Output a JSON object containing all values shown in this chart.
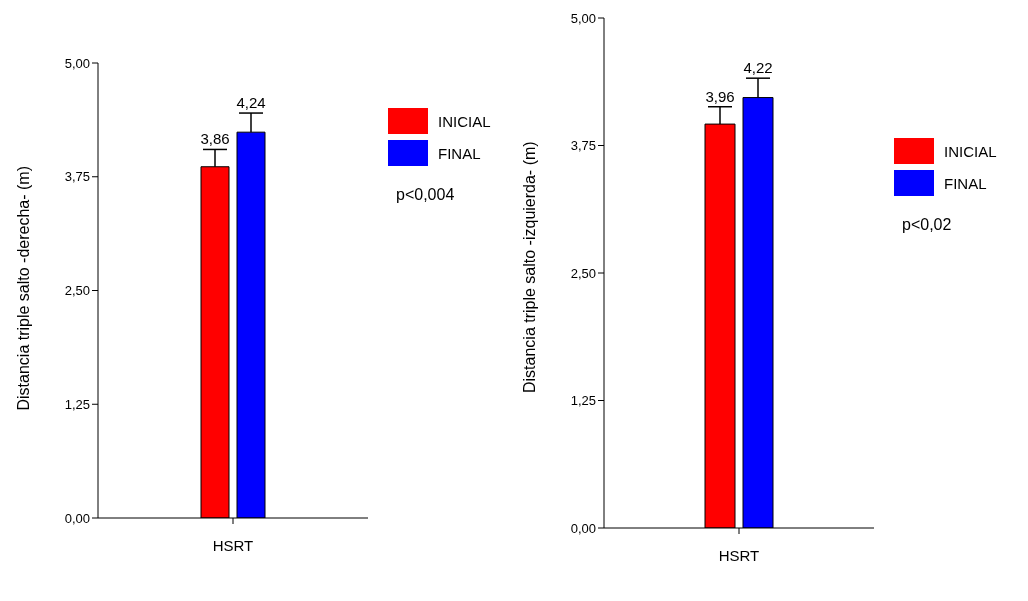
{
  "chart_data": [
    {
      "type": "bar",
      "categories": [
        "HSRT"
      ],
      "ylabel": "Distancia triple salto -derecha- (m)",
      "series": [
        {
          "name": "INICIAL",
          "color": "#ff0000",
          "values": [
            3.86
          ],
          "errors": [
            [
              3.86,
              4.05
            ]
          ],
          "value_labels": [
            "3,86"
          ]
        },
        {
          "name": "FINAL",
          "color": "#0000ff",
          "values": [
            4.24
          ],
          "errors": [
            [
              4.24,
              4.45
            ]
          ],
          "value_labels": [
            "4,24"
          ]
        }
      ],
      "ylim": [
        0,
        5
      ],
      "yticks": [
        {
          "value": 0,
          "label": "0,00"
        },
        {
          "value": 1.25,
          "label": "1,25"
        },
        {
          "value": 2.5,
          "label": "2,50"
        },
        {
          "value": 3.75,
          "label": "3,75"
        },
        {
          "value": 5,
          "label": "5,00"
        }
      ],
      "grid": false,
      "legend": "right",
      "annotations": [
        "p<0,004"
      ]
    },
    {
      "type": "bar",
      "categories": [
        "HSRT"
      ],
      "ylabel": "Distancia triple salto -izquierda- (m)",
      "series": [
        {
          "name": "INICIAL",
          "color": "#ff0000",
          "values": [
            3.96
          ],
          "errors": [
            [
              3.96,
              4.13
            ]
          ],
          "value_labels": [
            "3,96"
          ]
        },
        {
          "name": "FINAL",
          "color": "#0000ff",
          "values": [
            4.22
          ],
          "errors": [
            [
              4.22,
              4.41
            ]
          ],
          "value_labels": [
            "4,22"
          ]
        }
      ],
      "ylim": [
        0,
        5
      ],
      "yticks": [
        {
          "value": 0,
          "label": "0,00"
        },
        {
          "value": 1.25,
          "label": "1,25"
        },
        {
          "value": 2.5,
          "label": "2,50"
        },
        {
          "value": 3.75,
          "label": "3,75"
        },
        {
          "value": 5,
          "label": "5,00"
        }
      ],
      "grid": false,
      "legend": "right",
      "annotations": [
        "p<0,02"
      ]
    }
  ]
}
